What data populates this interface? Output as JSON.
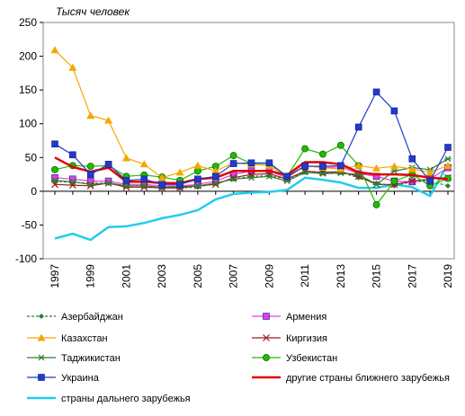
{
  "chart_data": {
    "type": "line",
    "ylabel": "Тысяч человек",
    "ylim": [
      -100,
      250
    ],
    "yticks": [
      -100,
      -50,
      0,
      50,
      100,
      150,
      200,
      250
    ],
    "xlim": [
      1997,
      2019
    ],
    "xticks": [
      1997,
      1999,
      2001,
      2003,
      2005,
      2007,
      2009,
      2011,
      2013,
      2015,
      2017,
      2019
    ],
    "grid": false,
    "legend_position": "bottom",
    "x": [
      1997,
      1998,
      1999,
      2000,
      2001,
      2002,
      2003,
      2004,
      2005,
      2006,
      2007,
      2008,
      2009,
      2010,
      2011,
      2012,
      2013,
      2014,
      2015,
      2016,
      2017,
      2018,
      2019
    ],
    "series": [
      {
        "name": "Азербайджан",
        "color": "#2e7d32",
        "marker": "diamond",
        "dashed": true,
        "values": [
          15,
          13,
          12,
          12,
          8,
          8,
          5,
          5,
          6,
          12,
          18,
          22,
          23,
          18,
          28,
          27,
          28,
          20,
          12,
          8,
          14,
          15,
          8
        ]
      },
      {
        "name": "Армения",
        "color": "#e040e0",
        "marker": "square",
        "values": [
          20,
          18,
          15,
          15,
          10,
          10,
          8,
          8,
          10,
          15,
          25,
          30,
          30,
          20,
          38,
          35,
          36,
          26,
          22,
          15,
          14,
          18,
          35
        ]
      },
      {
        "name": "Казахстан",
        "color": "#f5a800",
        "marker": "triangle",
        "values": [
          209,
          183,
          112,
          105,
          49,
          40,
          20,
          28,
          38,
          30,
          42,
          40,
          38,
          22,
          38,
          35,
          33,
          38,
          34,
          37,
          33,
          28,
          38
        ]
      },
      {
        "name": "Киргизия",
        "color": "#9b1c1c",
        "marker": "x",
        "values": [
          10,
          9,
          8,
          12,
          6,
          6,
          5,
          5,
          8,
          10,
          20,
          25,
          26,
          18,
          30,
          28,
          29,
          22,
          10,
          10,
          15,
          18,
          20
        ]
      },
      {
        "name": "Таджикистан",
        "color": "#2e7d32",
        "marker": "star",
        "values": [
          16,
          14,
          10,
          12,
          8,
          8,
          6,
          7,
          8,
          12,
          18,
          20,
          22,
          15,
          28,
          26,
          27,
          25,
          10,
          30,
          35,
          32,
          48
        ]
      },
      {
        "name": "Узбекистан",
        "color": "#22bb00",
        "marker": "circle",
        "values": [
          32,
          38,
          37,
          38,
          22,
          24,
          21,
          16,
          30,
          37,
          53,
          41,
          41,
          22,
          63,
          55,
          68,
          38,
          -20,
          15,
          25,
          8,
          19
        ]
      },
      {
        "name": "Украина",
        "color": "#1e3cc8",
        "marker": "square",
        "values": [
          70,
          54,
          25,
          40,
          16,
          18,
          10,
          10,
          18,
          22,
          41,
          42,
          42,
          22,
          37,
          37,
          38,
          95,
          147,
          119,
          48,
          15,
          65
        ]
      },
      {
        "name": "другие страны ближнего зарубежья",
        "color": "#e00000",
        "marker": "none",
        "width": 2.5,
        "values": [
          50,
          36,
          29,
          35,
          14,
          14,
          12,
          12,
          18,
          20,
          30,
          30,
          30,
          24,
          43,
          43,
          40,
          28,
          25,
          25,
          24,
          20,
          18
        ]
      },
      {
        "name": "страны дальнего зарубежья",
        "color": "#22ccee",
        "marker": "none",
        "width": 2.5,
        "values": [
          -70,
          -63,
          -72,
          -53,
          -52,
          -47,
          -40,
          -35,
          -28,
          -12,
          -4,
          -2,
          -1,
          2,
          20,
          17,
          13,
          5,
          5,
          10,
          6,
          -7,
          40
        ]
      }
    ]
  }
}
